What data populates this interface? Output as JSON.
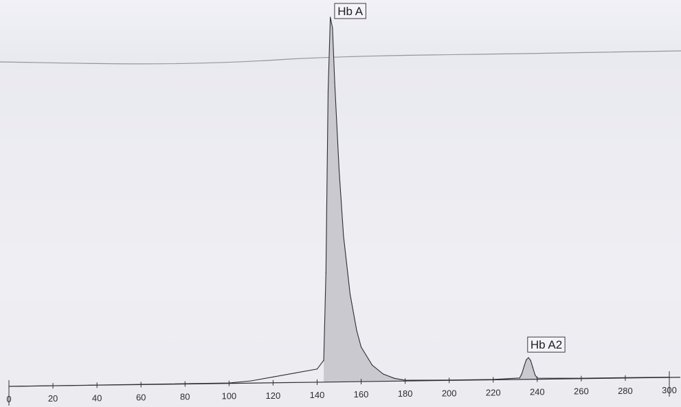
{
  "chart_data": {
    "type": "line",
    "xlabel": "",
    "ylabel": "",
    "xlim": [
      0,
      300
    ],
    "x_ticks": [
      0,
      20,
      40,
      60,
      80,
      100,
      120,
      140,
      160,
      180,
      200,
      220,
      240,
      260,
      280,
      300
    ],
    "series": [
      {
        "x": [
          0,
          100,
          110,
          120,
          130,
          140,
          143,
          144,
          145,
          146,
          147,
          148,
          150,
          152,
          155,
          158,
          160,
          165,
          170,
          175,
          180,
          200,
          220,
          232,
          233,
          234,
          235,
          236,
          237,
          238,
          239,
          240,
          260,
          280,
          300
        ],
        "y": [
          0,
          0.1,
          0.6,
          1.6,
          2.6,
          3.6,
          6,
          30,
          80,
          100,
          97,
          82,
          58,
          40,
          24,
          14,
          9.5,
          4.5,
          2,
          0.8,
          0.2,
          0.1,
          0.1,
          0.4,
          1.6,
          3.6,
          5.4,
          6,
          5.2,
          3.2,
          1.2,
          0.3,
          0.1,
          0.1,
          0.1
        ]
      }
    ],
    "annotations": [
      {
        "label": "Hb A",
        "x": 146
      },
      {
        "label": "Hb A2",
        "x": 236
      }
    ]
  }
}
